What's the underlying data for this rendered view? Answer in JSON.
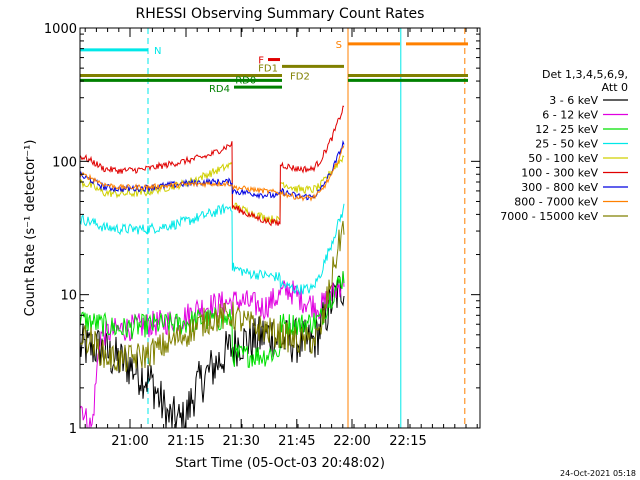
{
  "chart_data": {
    "type": "line",
    "title": "RHESSI Observing Summary Count Rates",
    "xlabel": "Start Time (05-Oct-03 20:48:02)",
    "ylabel": "Count Rate (s⁻¹ detector⁻¹)",
    "yscale": "log",
    "ylim": [
      1,
      1000
    ],
    "xlim": [
      0,
      100
    ],
    "y_ticks": [
      {
        "v": 1,
        "label": "1"
      },
      {
        "v": 10,
        "label": "10"
      },
      {
        "v": 100,
        "label": "100"
      },
      {
        "v": 1000,
        "label": "1000"
      }
    ],
    "x_ticks": [
      {
        "x": 12.5,
        "label": "21:00"
      },
      {
        "x": 26.5,
        "label": "21:15"
      },
      {
        "x": 40.3,
        "label": "21:30"
      },
      {
        "x": 54.2,
        "label": "21:45"
      },
      {
        "x": 68.0,
        "label": "22:00"
      },
      {
        "x": 82.0,
        "label": "22:15"
      }
    ],
    "legend_header": [
      "Det 1,3,4,5,6,9,",
      "Att 0"
    ],
    "series": [
      {
        "name": "3 - 6 keV",
        "color": "#000000",
        "noise": 0.35,
        "points": [
          [
            0,
            4
          ],
          [
            5,
            4
          ],
          [
            8,
            3.4
          ],
          [
            12,
            3
          ],
          [
            18,
            2.2
          ],
          [
            22,
            1.2
          ],
          [
            26,
            1.1
          ],
          [
            29,
            2
          ],
          [
            33,
            2.8
          ],
          [
            37,
            3.8
          ],
          [
            40,
            4.5
          ],
          [
            44,
            4.5
          ],
          [
            46,
            5
          ],
          [
            48,
            5
          ],
          [
            50,
            4.5
          ],
          [
            54,
            4.5
          ],
          [
            58,
            4.3
          ],
          [
            60,
            5.5
          ],
          [
            63,
            9
          ],
          [
            66,
            12
          ]
        ]
      },
      {
        "name": "6 - 12 keV",
        "color": "#e000e0",
        "noise": 0.2,
        "points": [
          [
            0,
            1.5
          ],
          [
            0.8,
            1.4
          ],
          [
            1.3,
            1.2
          ],
          [
            2,
            1.1
          ],
          [
            3,
            1
          ],
          [
            5,
            5
          ],
          [
            10,
            5.5
          ],
          [
            18,
            6
          ],
          [
            25,
            6.5
          ],
          [
            30,
            8
          ],
          [
            40,
            9
          ],
          [
            46,
            8
          ],
          [
            50,
            10
          ],
          [
            52,
            11
          ],
          [
            56,
            9
          ],
          [
            60,
            8
          ],
          [
            63,
            10
          ],
          [
            66,
            13
          ]
        ]
      },
      {
        "name": "12 - 25 keV",
        "color": "#00e000",
        "noise": 0.18,
        "points": [
          [
            0,
            6.5
          ],
          [
            5,
            6
          ],
          [
            10,
            5.5
          ],
          [
            15,
            5.8
          ],
          [
            20,
            6
          ],
          [
            25,
            6
          ],
          [
            30,
            6.5
          ],
          [
            38,
            6.5
          ],
          [
            38.1,
            3.5
          ],
          [
            46,
            3.5
          ],
          [
            50,
            3.8
          ],
          [
            50.1,
            6
          ],
          [
            56,
            6
          ],
          [
            60,
            6.5
          ],
          [
            63,
            10
          ],
          [
            66,
            14
          ]
        ]
      },
      {
        "name": "25 - 50 keV",
        "color": "#00e8e8",
        "noise": 0.08,
        "points": [
          [
            0,
            37
          ],
          [
            3,
            35
          ],
          [
            6,
            32
          ],
          [
            10,
            31
          ],
          [
            16,
            31
          ],
          [
            20,
            32
          ],
          [
            26,
            35
          ],
          [
            32,
            40
          ],
          [
            38,
            46
          ],
          [
            38.1,
            16
          ],
          [
            42,
            14.5
          ],
          [
            46,
            14
          ],
          [
            50,
            13.5
          ],
          [
            50.1,
            12
          ],
          [
            54,
            11
          ],
          [
            58,
            11
          ],
          [
            60,
            14
          ],
          [
            63,
            25
          ],
          [
            66,
            45
          ]
        ]
      },
      {
        "name": "50 - 100 keV",
        "color": "#d0d000",
        "noise": 0.06,
        "points": [
          [
            0,
            70
          ],
          [
            3,
            65
          ],
          [
            6,
            58
          ],
          [
            10,
            57
          ],
          [
            16,
            58
          ],
          [
            20,
            62
          ],
          [
            26,
            68
          ],
          [
            32,
            80
          ],
          [
            38,
            95
          ],
          [
            38.1,
            47
          ],
          [
            42,
            42
          ],
          [
            46,
            38
          ],
          [
            50,
            36
          ],
          [
            50.1,
            70
          ],
          [
            54,
            62
          ],
          [
            58,
            61
          ],
          [
            60,
            65
          ],
          [
            63,
            85
          ],
          [
            66,
            110
          ]
        ]
      },
      {
        "name": "100 - 300 keV",
        "color": "#e00000",
        "noise": 0.05,
        "points": [
          [
            0,
            110
          ],
          [
            3,
            100
          ],
          [
            6,
            88
          ],
          [
            10,
            85
          ],
          [
            16,
            87
          ],
          [
            20,
            92
          ],
          [
            26,
            100
          ],
          [
            32,
            110
          ],
          [
            38,
            135
          ],
          [
            38.1,
            46
          ],
          [
            42,
            40
          ],
          [
            46,
            36
          ],
          [
            50,
            34
          ],
          [
            50.1,
            95
          ],
          [
            54,
            88
          ],
          [
            58,
            87
          ],
          [
            60,
            100
          ],
          [
            63,
            150
          ],
          [
            66,
            260
          ]
        ]
      },
      {
        "name": "300 - 800 keV",
        "color": "#0000e0",
        "noise": 0.05,
        "points": [
          [
            0,
            78
          ],
          [
            3,
            72
          ],
          [
            6,
            64
          ],
          [
            10,
            62
          ],
          [
            16,
            63
          ],
          [
            20,
            65
          ],
          [
            26,
            68
          ],
          [
            32,
            70
          ],
          [
            38,
            70
          ],
          [
            38.1,
            60
          ],
          [
            42,
            58
          ],
          [
            46,
            56
          ],
          [
            50,
            55
          ],
          [
            50.1,
            60
          ],
          [
            54,
            55
          ],
          [
            58,
            54
          ],
          [
            60,
            60
          ],
          [
            63,
            85
          ],
          [
            66,
            140
          ]
        ]
      },
      {
        "name": "800 - 7000 keV",
        "color": "#ff8000",
        "noise": 0.04,
        "points": [
          [
            0,
            80
          ],
          [
            3,
            75
          ],
          [
            6,
            67
          ],
          [
            10,
            64
          ],
          [
            16,
            64
          ],
          [
            20,
            65
          ],
          [
            26,
            67
          ],
          [
            32,
            68
          ],
          [
            38,
            68
          ],
          [
            38.1,
            64
          ],
          [
            42,
            62
          ],
          [
            46,
            60
          ],
          [
            50,
            58
          ],
          [
            50.1,
            58
          ],
          [
            54,
            54
          ],
          [
            58,
            53
          ],
          [
            60,
            58
          ],
          [
            63,
            80
          ],
          [
            66,
            130
          ]
        ]
      },
      {
        "name": "7000 - 15000 keV",
        "color": "#808000",
        "noise": 0.22,
        "points": [
          [
            0,
            5
          ],
          [
            3,
            4.5
          ],
          [
            6,
            3.5
          ],
          [
            10,
            3.2
          ],
          [
            16,
            3.5
          ],
          [
            20,
            4
          ],
          [
            26,
            5
          ],
          [
            32,
            6.5
          ],
          [
            38,
            7
          ],
          [
            42,
            6
          ],
          [
            46,
            5.5
          ],
          [
            50,
            5
          ],
          [
            54,
            4.5
          ],
          [
            58,
            4.5
          ],
          [
            60,
            5
          ],
          [
            63,
            14
          ],
          [
            66,
            35
          ]
        ]
      }
    ],
    "flag_bars": [
      {
        "label": "N",
        "color": "#00e8e8",
        "y": 685,
        "segments": [
          [
            0,
            17
          ]
        ],
        "lx": 18.5,
        "ly": 685,
        "anchor": "start"
      },
      {
        "label": "S",
        "color": "#ff8000",
        "y": 760,
        "segments": [
          [
            67,
            80
          ],
          [
            81.5,
            97
          ]
        ],
        "lx": 65.5,
        "ly": 760,
        "anchor": "end"
      },
      {
        "label": "F",
        "color": "#e00000",
        "y": 580,
        "segments": [
          [
            47,
            50
          ]
        ],
        "lx": 46,
        "ly": 580,
        "anchor": "end"
      },
      {
        "label": "FD1",
        "color": "#808000",
        "y": 515,
        "segments": [
          [
            50.5,
            66
          ]
        ],
        "lx": 49.5,
        "ly": 505,
        "anchor": "end"
      },
      {
        "label": "FD2",
        "color": "#808000",
        "y": 440,
        "segments": [
          [
            0,
            50.5
          ],
          [
            67,
            97
          ]
        ],
        "lx": 52.5,
        "ly": 440,
        "anchor": "start"
      },
      {
        "label": "RD0",
        "color": "#008000",
        "y": 405,
        "segments": [
          [
            0,
            50.5
          ],
          [
            67,
            97
          ]
        ],
        "lx": 38.8,
        "ly": 410,
        "anchor": "start"
      },
      {
        "label": "RD4",
        "color": "#008000",
        "y": 360,
        "segments": [
          [
            38.5,
            50.5
          ]
        ],
        "lx": 37.5,
        "ly": 355,
        "anchor": "end"
      }
    ],
    "vlines": [
      {
        "x": 0,
        "color": "#00e8e8",
        "dash": false
      },
      {
        "x": 17,
        "color": "#00e8e8",
        "dash": true
      },
      {
        "x": 67,
        "color": "#ff8000",
        "dash": false
      },
      {
        "x": 80.2,
        "color": "#00e8e8",
        "dash": false
      },
      {
        "x": 96.2,
        "color": "#ff8000",
        "dash": true
      }
    ],
    "timestamp": "24-Oct-2021 05:18"
  }
}
